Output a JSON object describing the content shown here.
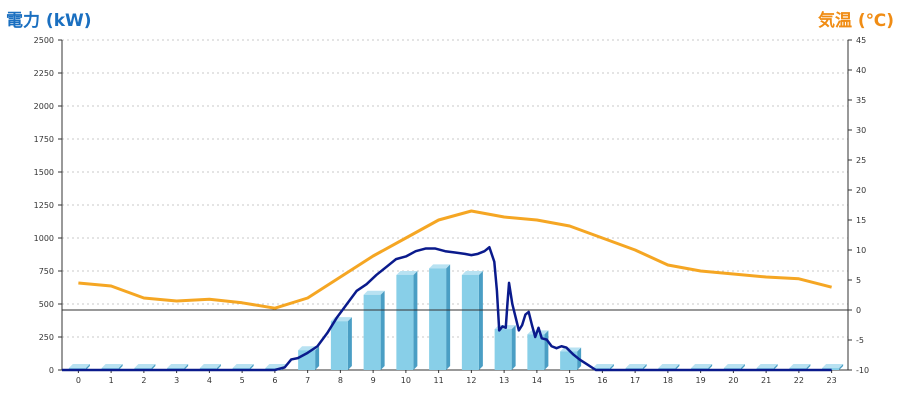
{
  "chart_data": {
    "type": "bar",
    "left_axis_title": "電力 (kW)",
    "right_axis_title": "気温 (℃)",
    "categories": [
      "0",
      "1",
      "2",
      "3",
      "4",
      "5",
      "6",
      "7",
      "8",
      "9",
      "10",
      "11",
      "12",
      "13",
      "14",
      "15",
      "16",
      "17",
      "18",
      "19",
      "20",
      "21",
      "22",
      "23"
    ],
    "left_ylim": [
      0,
      2500
    ],
    "left_yticks": [
      0,
      250,
      500,
      750,
      1000,
      1250,
      1500,
      1750,
      2000,
      2250,
      2500
    ],
    "right_ylim": [
      -10,
      45
    ],
    "right_yticks": [
      -10,
      -5,
      0,
      5,
      10,
      15,
      20,
      25,
      30,
      35,
      40,
      45
    ],
    "grid": "horizontal dotted",
    "bar_series": {
      "values": [
        15,
        15,
        15,
        15,
        15,
        15,
        15,
        150,
        370,
        570,
        720,
        770,
        720,
        310,
        270,
        140,
        15,
        15,
        15,
        15,
        15,
        15,
        15,
        15
      ],
      "color": "#88cfe8",
      "side_color": "#4a9ec4"
    },
    "power_line": {
      "color": "#0a1a8c",
      "x": [
        6.0,
        6.3,
        6.5,
        6.7,
        7.0,
        7.3,
        7.6,
        7.9,
        8.2,
        8.5,
        8.8,
        9.1,
        9.4,
        9.7,
        10.0,
        10.3,
        10.6,
        10.9,
        11.2,
        11.5,
        11.8,
        12.0,
        12.2,
        12.4,
        12.55,
        12.7,
        12.78,
        12.85,
        12.95,
        13.05,
        13.1,
        13.15,
        13.25,
        13.35,
        13.45,
        13.55,
        13.65,
        13.75,
        13.85,
        13.95,
        14.05,
        14.15,
        14.3,
        14.45,
        14.6,
        14.75,
        14.9,
        15.1,
        15.3,
        15.55,
        15.8,
        16.0,
        16.5,
        23.0
      ],
      "y": [
        0,
        20,
        80,
        90,
        130,
        180,
        280,
        400,
        500,
        600,
        650,
        720,
        780,
        840,
        860,
        900,
        920,
        920,
        900,
        890,
        880,
        870,
        880,
        900,
        930,
        820,
        600,
        300,
        330,
        320,
        500,
        660,
        500,
        400,
        300,
        340,
        420,
        440,
        340,
        250,
        320,
        240,
        230,
        180,
        165,
        180,
        170,
        120,
        80,
        40,
        0,
        0,
        0,
        0
      ]
    },
    "temperature_line": {
      "color": "#f5a623",
      "x": [
        0,
        1,
        2,
        3,
        4,
        5,
        6,
        7,
        8,
        9,
        10,
        11,
        12,
        13,
        14,
        15,
        16,
        17,
        18,
        19,
        20,
        21,
        22,
        23
      ],
      "y": [
        4.5,
        4.0,
        2.0,
        1.5,
        1.8,
        1.2,
        0.3,
        2.0,
        5.5,
        9.0,
        12.0,
        15.0,
        16.5,
        15.5,
        15.0,
        14.0,
        12.0,
        10.0,
        7.5,
        6.5,
        6.0,
        5.5,
        5.2,
        3.8
      ]
    }
  }
}
